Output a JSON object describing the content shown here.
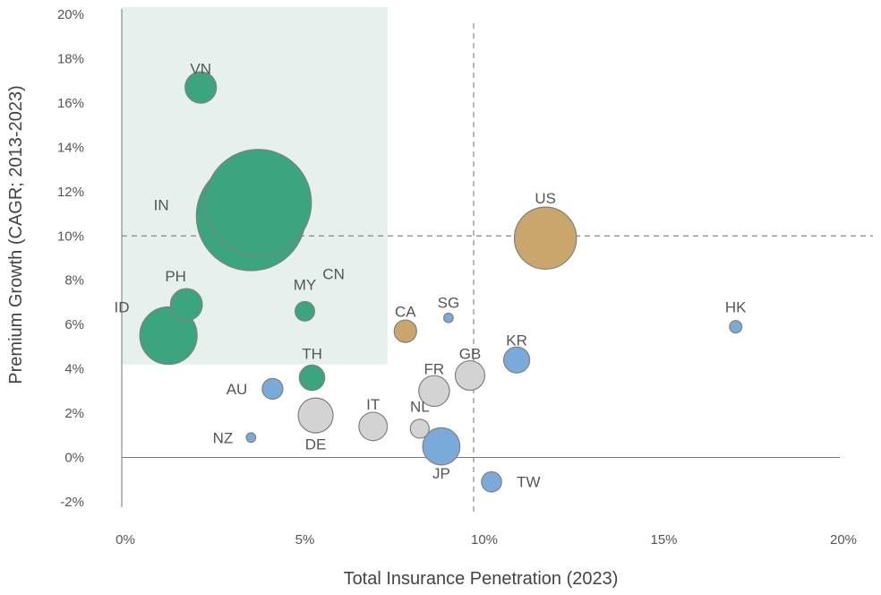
{
  "chart_data": {
    "type": "scatter",
    "title": "",
    "xlabel": "Total Insurance Penetration (2023)",
    "ylabel": "Premium Growth (CAGR; 2013-2023)",
    "xlim": [
      0,
      20
    ],
    "ylim": [
      -2,
      20
    ],
    "x_ticks": [
      "0%",
      "5%",
      "10%",
      "15%",
      "20%"
    ],
    "y_ticks": [
      "-2%",
      "0%",
      "2%",
      "4%",
      "6%",
      "8%",
      "10%",
      "12%",
      "14%",
      "16%",
      "18%",
      "20%"
    ],
    "grid": false,
    "reference_lines": {
      "x": 9.8,
      "y": 10
    },
    "highlight_region": {
      "x": [
        0,
        7.4
      ],
      "y": [
        4.2,
        20
      ],
      "color": "#e6f0ec"
    },
    "colors": {
      "green": "#3aa57f",
      "gold": "#c9a66b",
      "blue": "#7aaad9",
      "grey": "#d3d3d3"
    },
    "series": [
      {
        "label": "VN",
        "x": 2.2,
        "y": 16.7,
        "size": 0.53,
        "color": "green"
      },
      {
        "label": "CN",
        "x": 3.8,
        "y": 11.5,
        "size": 1.8,
        "color": "green"
      },
      {
        "label": "IN",
        "x": 3.6,
        "y": 10.9,
        "size": 1.85,
        "color": "green"
      },
      {
        "label": "PH",
        "x": 1.8,
        "y": 6.9,
        "size": 0.54,
        "color": "green"
      },
      {
        "label": "ID",
        "x": 1.3,
        "y": 5.5,
        "size": 0.97,
        "color": "green"
      },
      {
        "label": "MY",
        "x": 5.1,
        "y": 6.6,
        "size": 0.33,
        "color": "green"
      },
      {
        "label": "TH",
        "x": 5.3,
        "y": 3.6,
        "size": 0.43,
        "color": "green"
      },
      {
        "label": "US",
        "x": 11.8,
        "y": 9.9,
        "size": 1.05,
        "color": "gold"
      },
      {
        "label": "CA",
        "x": 7.9,
        "y": 5.7,
        "size": 0.38,
        "color": "gold"
      },
      {
        "label": "SG",
        "x": 9.1,
        "y": 6.3,
        "size": 0.16,
        "color": "blue"
      },
      {
        "label": "HK",
        "x": 17.1,
        "y": 5.9,
        "size": 0.21,
        "color": "blue"
      },
      {
        "label": "KR",
        "x": 11.0,
        "y": 4.4,
        "size": 0.44,
        "color": "blue"
      },
      {
        "label": "AU",
        "x": 4.2,
        "y": 3.1,
        "size": 0.35,
        "color": "blue"
      },
      {
        "label": "NZ",
        "x": 3.6,
        "y": 0.9,
        "size": 0.16,
        "color": "blue"
      },
      {
        "label": "JP",
        "x": 8.9,
        "y": 0.5,
        "size": 0.63,
        "color": "blue"
      },
      {
        "label": "TW",
        "x": 10.3,
        "y": -1.1,
        "size": 0.34,
        "color": "blue"
      },
      {
        "label": "GB",
        "x": 9.7,
        "y": 3.7,
        "size": 0.5,
        "color": "grey"
      },
      {
        "label": "FR",
        "x": 8.7,
        "y": 3.0,
        "size": 0.52,
        "color": "grey"
      },
      {
        "label": "DE",
        "x": 5.4,
        "y": 1.9,
        "size": 0.59,
        "color": "grey"
      },
      {
        "label": "IT",
        "x": 7.0,
        "y": 1.4,
        "size": 0.48,
        "color": "grey"
      },
      {
        "label": "NL",
        "x": 8.3,
        "y": 1.3,
        "size": 0.32,
        "color": "grey"
      }
    ]
  }
}
